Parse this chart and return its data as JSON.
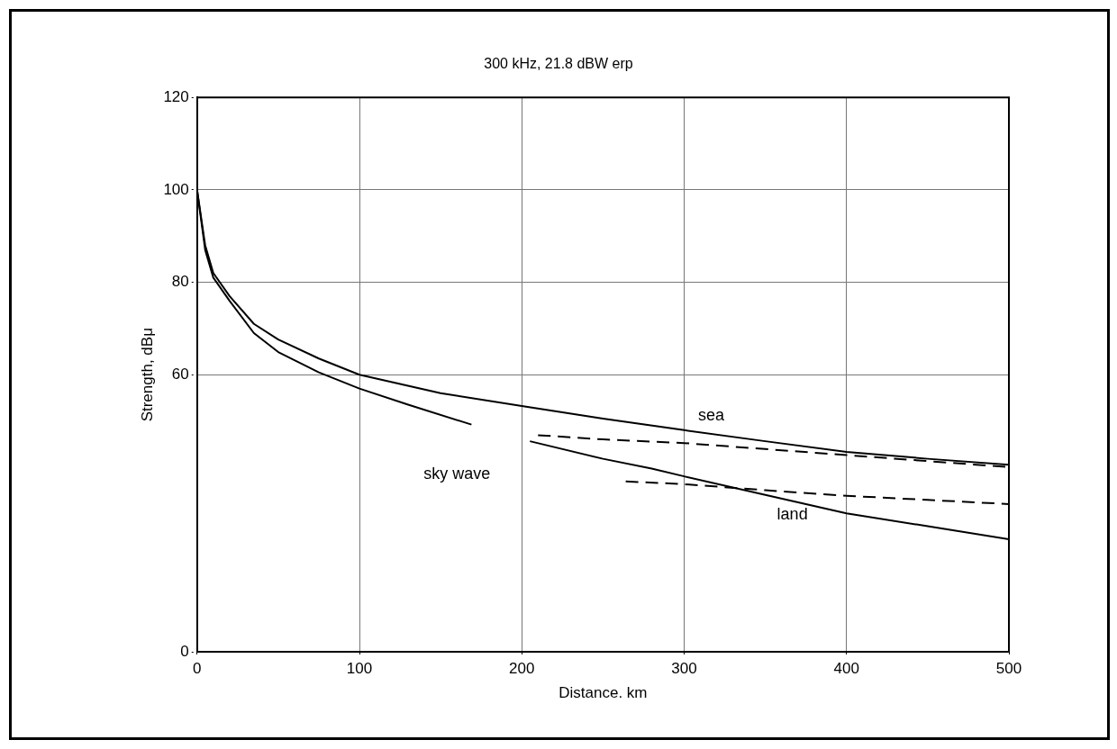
{
  "chart_data": {
    "type": "line",
    "title": "300 kHz, 21.8 dBW erp",
    "xlabel": "Distance. km",
    "ylabel": "Strength, dBμ",
    "xlim": [
      0,
      500
    ],
    "xticks": [
      0,
      100,
      200,
      300,
      400,
      500
    ],
    "ylim": [
      0,
      120
    ],
    "yticks": [
      0,
      60,
      80,
      100,
      120
    ],
    "grid": true,
    "marker": "none",
    "line_style": "solid",
    "series": [
      {
        "name": "sea",
        "color": "#000000",
        "x": [
          0,
          5,
          10,
          20,
          35,
          50,
          75,
          100,
          150,
          200,
          250,
          300,
          350,
          400,
          450,
          500
        ],
        "values": [
          100,
          88,
          82,
          77,
          71,
          67.6,
          63.5,
          60,
          56,
          53.2,
          50.5,
          48,
          45.6,
          43.3,
          41.8,
          40.5
        ]
      },
      {
        "name": "land",
        "color": "#000000",
        "x": [
          0,
          5,
          10,
          20,
          35,
          50,
          75,
          100,
          130,
          169,
          185,
          205,
          250,
          280,
          300,
          350,
          400,
          450,
          500
        ],
        "values": [
          100,
          87,
          81,
          76,
          69,
          64.9,
          60.5,
          57,
          53.5,
          49.2,
          null,
          45.6,
          41.8,
          39.7,
          38,
          34,
          30,
          27.2,
          24.4
        ]
      },
      {
        "color": "#000000",
        "line_style": "dashed",
        "x": [
          210,
          250,
          300,
          350,
          400,
          450,
          500
        ],
        "values": [
          46.9,
          46,
          45.2,
          43.9,
          42.6,
          41.3,
          40
        ]
      },
      {
        "color": "#000000",
        "line_style": "dashed",
        "x": [
          264,
          300,
          350,
          400,
          450,
          500
        ],
        "values": [
          36.9,
          36.3,
          35,
          33.8,
          32.9,
          32
        ]
      }
    ],
    "annotations": [
      "sky wave"
    ]
  }
}
